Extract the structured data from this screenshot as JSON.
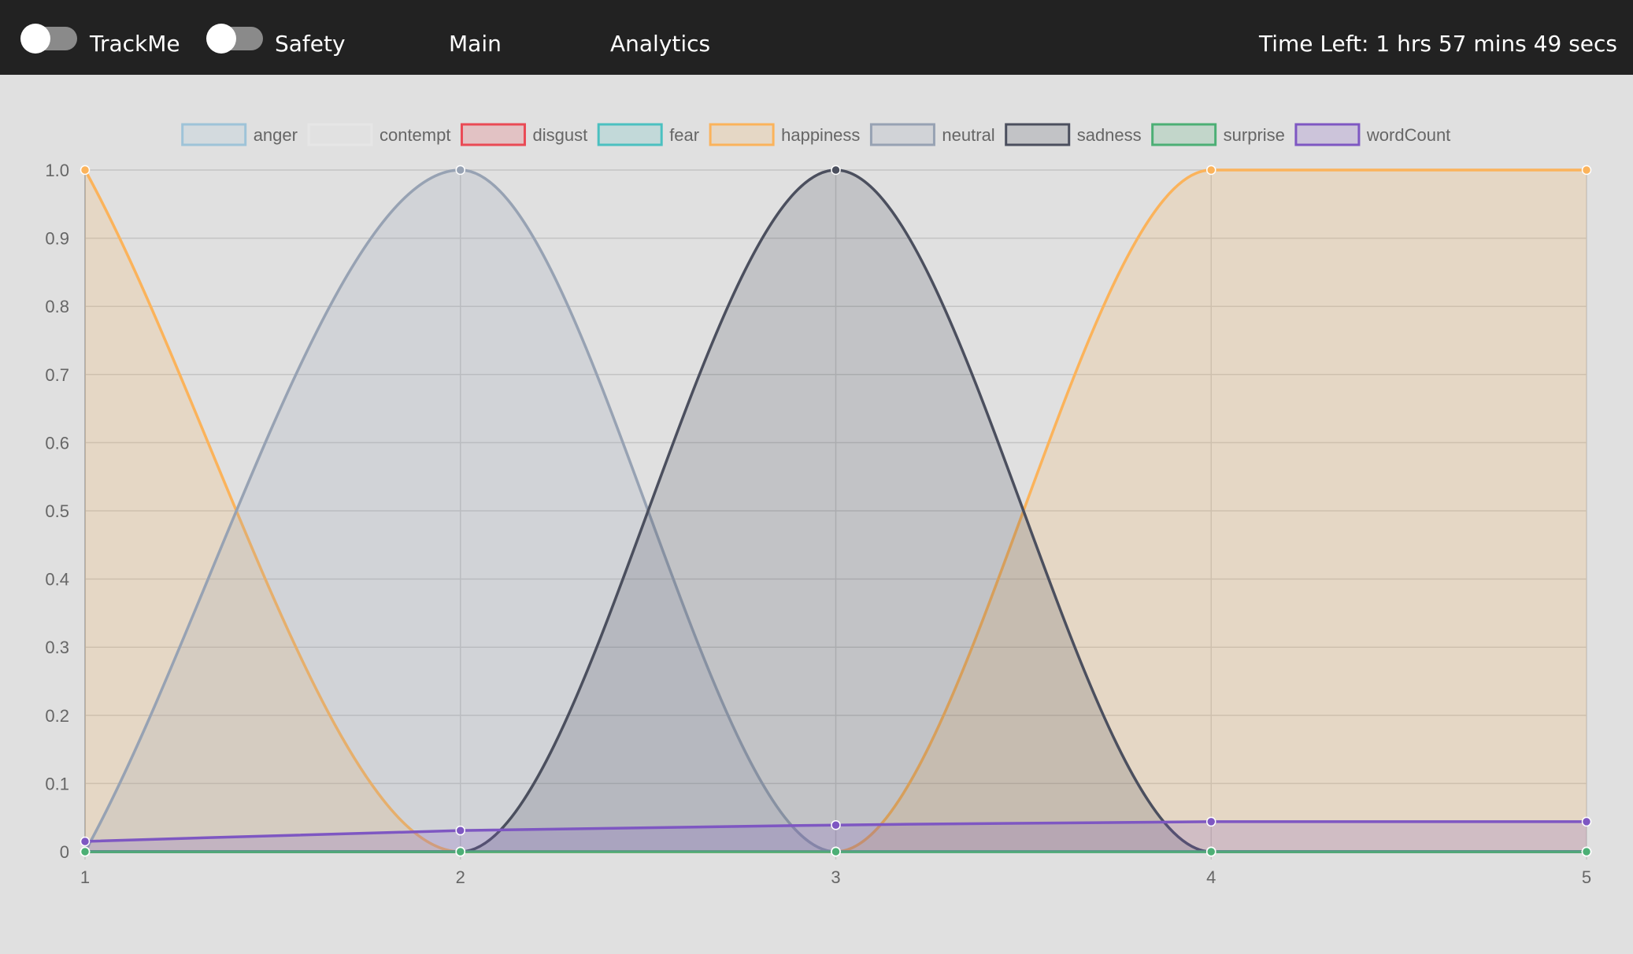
{
  "header": {
    "toggles": [
      {
        "label": "TrackMe",
        "on": false
      },
      {
        "label": "Safety",
        "on": false
      }
    ],
    "nav": [
      {
        "label": "Main"
      },
      {
        "label": "Analytics"
      }
    ],
    "time_left": "Time Left: 1 hrs 57 mins 49 secs"
  },
  "chart_data": {
    "type": "line",
    "x": [
      1,
      2,
      3,
      4,
      5
    ],
    "xlabel": "",
    "ylabel": "",
    "ylim": [
      0,
      1
    ],
    "y_ticks": [
      "0",
      "0.1",
      "0.2",
      "0.3",
      "0.4",
      "0.5",
      "0.6",
      "0.7",
      "0.8",
      "0.9",
      "1.0"
    ],
    "x_ticks": [
      "1",
      "2",
      "3",
      "4",
      "5"
    ],
    "grid": true,
    "legend_position": "top",
    "series": [
      {
        "name": "anger",
        "values": [
          0,
          0,
          0,
          0,
          0
        ],
        "color": "#9ec3d8",
        "fill": "rgba(158,195,216,0.2)"
      },
      {
        "name": "contempt",
        "values": [
          0,
          0,
          0,
          0,
          0
        ],
        "color": "#e6e6e6",
        "fill": "rgba(230,230,230,0.2)"
      },
      {
        "name": "disgust",
        "values": [
          0,
          0,
          0,
          0,
          0
        ],
        "color": "#ea4a55",
        "fill": "rgba(234,74,85,0.2)"
      },
      {
        "name": "fear",
        "values": [
          0,
          0,
          0,
          0,
          0
        ],
        "color": "#4bc0c0",
        "fill": "rgba(75,192,192,0.2)"
      },
      {
        "name": "happiness",
        "values": [
          1,
          0,
          0,
          1,
          1
        ],
        "color": "#fbb35b",
        "fill": "rgba(251,179,91,0.2)"
      },
      {
        "name": "neutral",
        "values": [
          0,
          1,
          0,
          0,
          0
        ],
        "color": "#97a2b3",
        "fill": "rgba(151,162,179,0.2)"
      },
      {
        "name": "sadness",
        "values": [
          0,
          0,
          1,
          0,
          0
        ],
        "color": "#4b4f5e",
        "fill": "rgba(75,79,94,0.2)"
      },
      {
        "name": "surprise",
        "values": [
          0,
          0,
          0,
          0,
          0
        ],
        "color": "#4caf75",
        "fill": "rgba(76,175,117,0.2)"
      },
      {
        "name": "wordCount",
        "values": [
          0.015,
          0.031,
          0.039,
          0.044,
          0.044
        ],
        "color": "#7e57c2",
        "fill": "rgba(126,87,194,0.2)"
      }
    ]
  }
}
